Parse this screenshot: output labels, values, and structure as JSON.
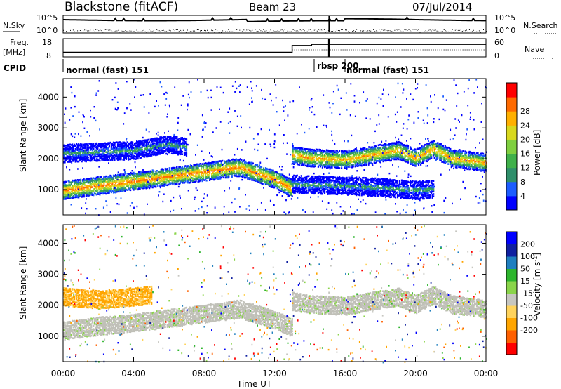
{
  "header": {
    "station": "Blackstone (fitACF)",
    "beam": "Beam 23",
    "date": "07/Jul/2014"
  },
  "top_panels": {
    "nsky_label": "N.Sky",
    "nsearch_label": "N.Search",
    "freq_label_1": "Freq.",
    "freq_label_2": "[MHz]",
    "nave_label": "Nave",
    "noise_ticks": [
      "10^5",
      "10^0"
    ],
    "freq_ticks": [
      "18",
      "8"
    ],
    "nave_ticks": [
      "60",
      "0"
    ],
    "cpid_label": "CPID",
    "cpid_modes": [
      {
        "label": "normal (fast) 151",
        "start_hour": 0
      },
      {
        "label": "rbsp 200",
        "start_hour": 14.2
      },
      {
        "label": "normal (fast) 151",
        "start_hour": 16.1
      }
    ],
    "freq_series": {
      "x_hours": [
        0,
        13.0,
        13.0,
        14.1,
        14.1,
        24
      ],
      "y_mhz": [
        10.5,
        10.5,
        14.2,
        14.2,
        14.9,
        14.9
      ]
    }
  },
  "colors": {
    "power": [
      "#0000ff",
      "#1c5cff",
      "#2f8f6b",
      "#3fb04a",
      "#7fcf3f",
      "#d8d81e",
      "#ffb000",
      "#ff6a00",
      "#ff0000"
    ],
    "velocity": [
      "#ff0000",
      "#ff6000",
      "#ffa500",
      "#ffd35c",
      "#c6c6c0",
      "#8ad44a",
      "#2db52d",
      "#1f7fbf",
      "#1020a0",
      "#0000ff"
    ],
    "ground_scatter": "#c0c0b8"
  },
  "chart_data": [
    {
      "type": "heatmap",
      "name_panel": "power",
      "ylabel": "Slant Range [km]",
      "xlabel": "Time UT",
      "xlim_hours": [
        0,
        24
      ],
      "ylim_km": [
        180,
        4600
      ],
      "x_tick_labels": [
        "00:00",
        "04:00",
        "08:00",
        "12:00",
        "16:00",
        "20:00",
        "00:00"
      ],
      "y_tick_labels": [
        "1000",
        "2000",
        "3000",
        "4000"
      ],
      "colorbar": {
        "label": "Power [dB]",
        "ticks": [
          "4",
          "8",
          "12",
          "16",
          "20",
          "24",
          "28"
        ],
        "range": [
          0,
          30
        ]
      },
      "bands": [
        {
          "x_hours": [
            0,
            2,
            4,
            6,
            8,
            10,
            12,
            13
          ],
          "range_km": [
            1000,
            1150,
            1300,
            1450,
            1600,
            1750,
            1350,
            1050
          ],
          "peak_db": 26
        },
        {
          "x_hours": [
            13,
            14,
            16,
            18,
            19,
            20,
            21,
            22,
            24
          ],
          "range_km": [
            2150,
            2050,
            2000,
            2200,
            2300,
            2050,
            2350,
            2050,
            1900
          ],
          "peak_db": 24
        },
        {
          "x_hours": [
            0,
            2,
            4,
            6,
            7
          ],
          "range_km": [
            2200,
            2250,
            2300,
            2500,
            2400
          ],
          "peak_db": 10
        },
        {
          "x_hours": [
            13,
            16,
            18,
            20,
            21
          ],
          "range_km": [
            1200,
            1150,
            1100,
            1000,
            1050
          ],
          "peak_db": 10
        }
      ]
    },
    {
      "type": "heatmap",
      "name_panel": "velocity",
      "ylabel": "Slant Range [km]",
      "xlabel": "Time UT",
      "xlim_hours": [
        0,
        24
      ],
      "ylim_km": [
        180,
        4600
      ],
      "x_tick_labels": [
        "00:00",
        "04:00",
        "08:00",
        "12:00",
        "16:00",
        "20:00",
        "00:00"
      ],
      "y_tick_labels": [
        "1000",
        "2000",
        "3000",
        "4000"
      ],
      "colorbar": {
        "label": "Velocity [m s^-1]",
        "ticks": [
          "200",
          "100",
          "50",
          "15",
          "-15",
          "-50",
          "-100",
          "-200"
        ],
        "range": [
          -250,
          250
        ]
      },
      "bands": [
        {
          "x_hours": [
            0,
            2,
            4,
            6,
            8,
            10,
            12,
            13
          ],
          "range_km": [
            1200,
            1350,
            1450,
            1600,
            1750,
            1900,
            1550,
            1300
          ],
          "velocity": 0
        },
        {
          "x_hours": [
            13,
            14,
            16,
            18,
            19,
            20,
            21,
            22,
            24
          ],
          "range_km": [
            2150,
            2050,
            2000,
            2200,
            2300,
            2050,
            2350,
            2050,
            1900
          ],
          "velocity": 0
        },
        {
          "x_hours": [
            0,
            1,
            2,
            3,
            4,
            5
          ],
          "range_km": [
            2300,
            2250,
            2200,
            2250,
            2300,
            2350
          ],
          "velocity": -60
        }
      ]
    }
  ],
  "time_axis_label": "Time UT"
}
